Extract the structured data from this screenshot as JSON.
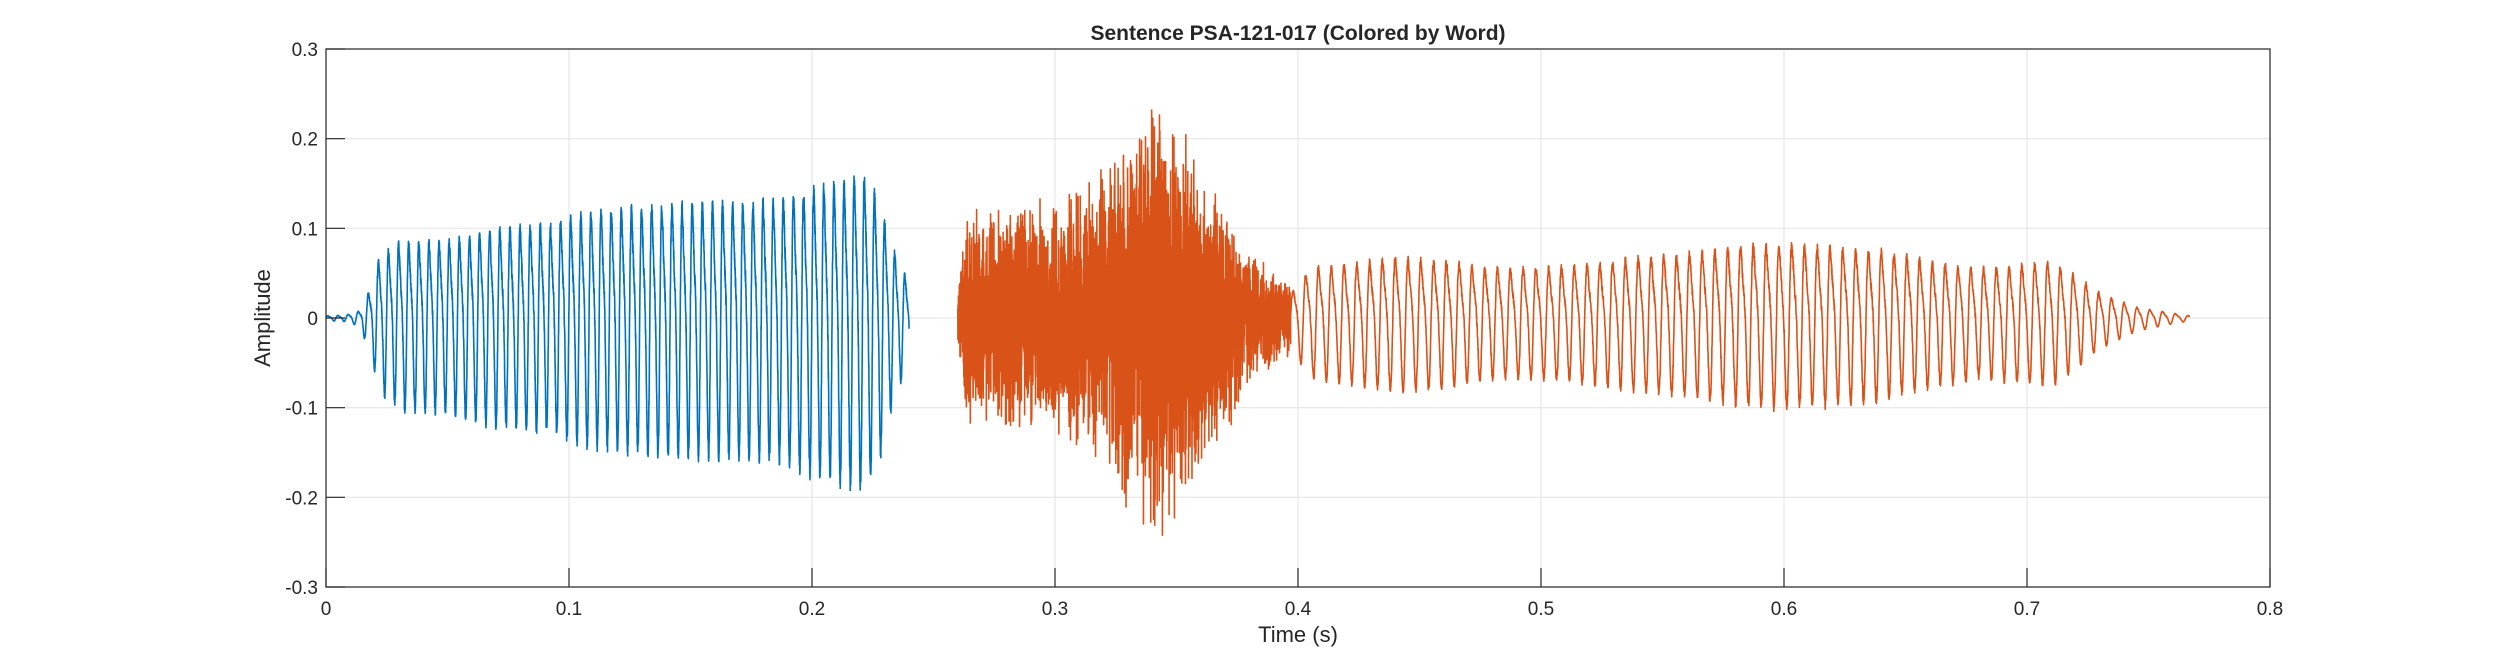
{
  "chart_data": {
    "type": "line",
    "title": "Sentence PSA-121-017 (Colored by Word)",
    "xlabel": "Time (s)",
    "ylabel": "Amplitude",
    "xlim": [
      0,
      0.8
    ],
    "ylim": [
      -0.3,
      0.3
    ],
    "xticks": [
      0,
      0.1,
      0.2,
      0.3,
      0.4,
      0.5,
      0.6,
      0.7,
      0.8
    ],
    "xtick_labels": [
      "0",
      "0.1",
      "0.2",
      "0.3",
      "0.4",
      "0.5",
      "0.6",
      "0.7",
      "0.8"
    ],
    "yticks": [
      -0.3,
      -0.2,
      -0.1,
      0,
      0.1,
      0.2,
      0.3
    ],
    "ytick_labels": [
      "-0.3",
      "-0.2",
      "-0.1",
      "0",
      "0.1",
      "0.2",
      "0.3"
    ],
    "grid": true,
    "series": [
      {
        "color": "#0072BD",
        "segments": [
          {
            "kind": "voiced",
            "t": [
              0.0,
              0.24
            ],
            "f0": 240,
            "env": [
              [
                0.0,
                0.003
              ],
              [
                0.008,
                0.004
              ],
              [
                0.014,
                0.01
              ],
              [
                0.018,
                0.04
              ],
              [
                0.022,
                0.085
              ],
              [
                0.03,
                0.105
              ],
              [
                0.05,
                0.108
              ],
              [
                0.07,
                0.125
              ],
              [
                0.09,
                0.13
              ],
              [
                0.11,
                0.148
              ],
              [
                0.13,
                0.155
              ],
              [
                0.15,
                0.16
              ],
              [
                0.17,
                0.16
              ],
              [
                0.185,
                0.163
              ],
              [
                0.2,
                0.18
              ],
              [
                0.215,
                0.192
              ],
              [
                0.222,
                0.2
              ],
              [
                0.228,
                0.16
              ],
              [
                0.233,
                0.1
              ],
              [
                0.237,
                0.07
              ],
              [
                0.24,
                0.05
              ]
            ]
          }
        ]
      },
      {
        "color": "#D95319",
        "segments": [
          {
            "kind": "noise",
            "t": [
              0.26,
              0.397
            ],
            "env": [
              [
                0.26,
                0.03
              ],
              [
                0.263,
                0.12
              ],
              [
                0.28,
                0.13
              ],
              [
                0.3,
                0.14
              ],
              [
                0.315,
                0.16
              ],
              [
                0.33,
                0.22
              ],
              [
                0.34,
                0.26
              ],
              [
                0.35,
                0.24
              ],
              [
                0.36,
                0.18
              ],
              [
                0.375,
                0.11
              ],
              [
                0.385,
                0.07
              ],
              [
                0.397,
                0.04
              ]
            ]
          },
          {
            "kind": "voiced",
            "t": [
              0.397,
              0.767
            ],
            "f0": 190,
            "env": [
              [
                0.397,
                0.035
              ],
              [
                0.405,
                0.07
              ],
              [
                0.42,
                0.075
              ],
              [
                0.44,
                0.085
              ],
              [
                0.46,
                0.08
              ],
              [
                0.48,
                0.07
              ],
              [
                0.5,
                0.07
              ],
              [
                0.52,
                0.075
              ],
              [
                0.54,
                0.085
              ],
              [
                0.56,
                0.09
              ],
              [
                0.58,
                0.1
              ],
              [
                0.6,
                0.105
              ],
              [
                0.62,
                0.1
              ],
              [
                0.64,
                0.095
              ],
              [
                0.66,
                0.08
              ],
              [
                0.68,
                0.07
              ],
              [
                0.7,
                0.075
              ],
              [
                0.71,
                0.078
              ],
              [
                0.72,
                0.06
              ],
              [
                0.73,
                0.035
              ],
              [
                0.745,
                0.015
              ],
              [
                0.767,
                0.003
              ]
            ]
          }
        ]
      }
    ]
  }
}
